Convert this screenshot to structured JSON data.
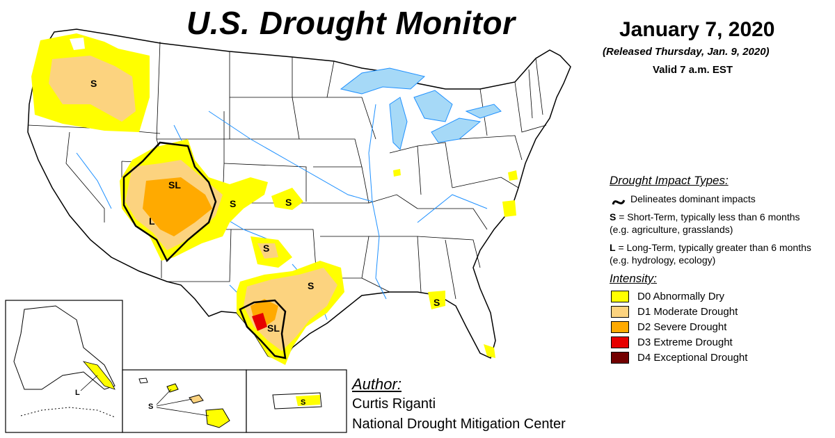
{
  "header": {
    "title": "U.S. Drought Monitor",
    "date": "January 7, 2020",
    "released": "(Released Thursday, Jan. 9, 2020)",
    "valid": "Valid 7 a.m. EST"
  },
  "impact_types": {
    "heading": "Drought Impact Types:",
    "delineates": "Delineates dominant impacts",
    "short_term_letter": "S",
    "short_term_text": " = Short-Term, typically less than 6 months (e.g. agriculture, grasslands)",
    "long_term_letter": "L",
    "long_term_text": " = Long-Term, typically greater than 6 months (e.g. hydrology, ecology)"
  },
  "intensity": {
    "heading": "Intensity:",
    "levels": [
      {
        "label": "D0 Abnormally Dry",
        "color": "#ffff00"
      },
      {
        "label": "D1 Moderate Drought",
        "color": "#fcd37f"
      },
      {
        "label": "D2 Severe Drought",
        "color": "#ffaa00"
      },
      {
        "label": "D3 Extreme Drought",
        "color": "#e60000"
      },
      {
        "label": "D4 Exceptional Drought",
        "color": "#730000"
      }
    ]
  },
  "map_labels": {
    "oregon": "S",
    "four_corners_north": "SL",
    "four_corners_south": "L",
    "colorado_east": "S",
    "kansas": "S",
    "oklahoma": "S",
    "texas_east": "S",
    "texas_south": "SL",
    "florida": "S",
    "alaska": "L",
    "hawaii": "S",
    "puerto_rico": "S"
  },
  "colors": {
    "water": "#a6d9f7",
    "river": "#1e90ff",
    "border": "#000000"
  },
  "author": {
    "heading": "Author:",
    "name": "Curtis Riganti",
    "org": "National Drought Mitigation Center"
  }
}
